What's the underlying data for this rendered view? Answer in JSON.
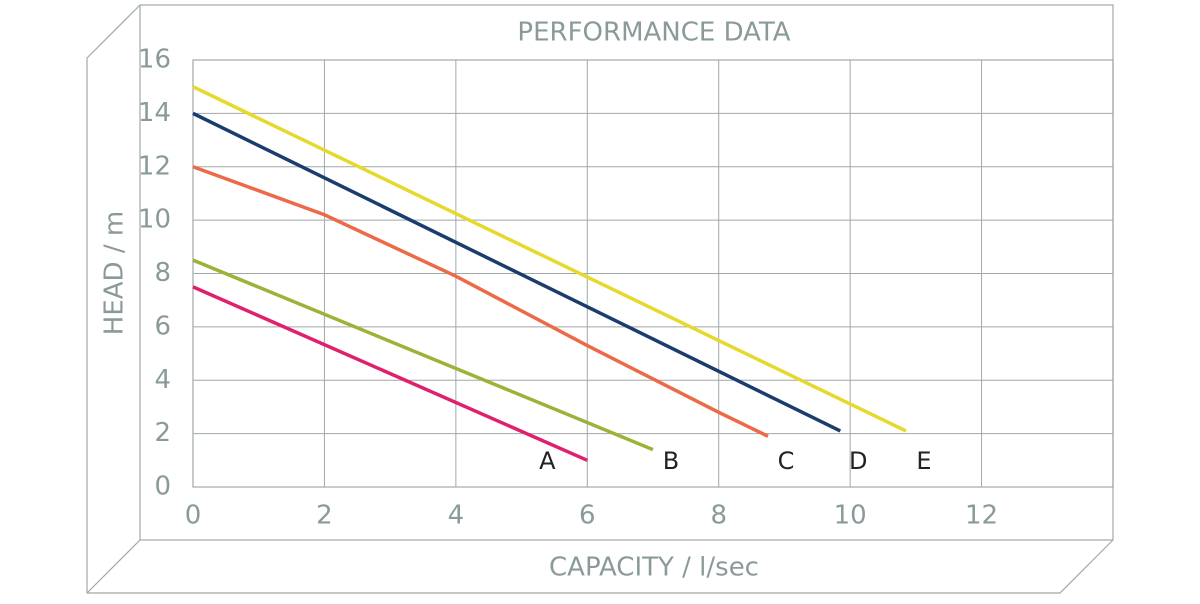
{
  "chart_data": {
    "type": "line",
    "title": "PERFORMANCE DATA",
    "x_label": "CAPACITY / l/sec",
    "y_label": "HEAD / m",
    "xlim": [
      0,
      14
    ],
    "xticks": [
      0,
      2,
      4,
      6,
      8,
      10,
      12
    ],
    "ylim": [
      0,
      16
    ],
    "yticks": [
      0,
      2,
      4,
      6,
      8,
      10,
      12,
      14,
      16
    ],
    "grid": true,
    "series": [
      {
        "name": "A",
        "color": "#e0206e",
        "x": [
          0,
          6
        ],
        "values": [
          7.5,
          1.0
        ]
      },
      {
        "name": "B",
        "color": "#9bb33a",
        "x": [
          0,
          7
        ],
        "values": [
          8.5,
          1.4
        ]
      },
      {
        "name": "C",
        "color": "#ec6a47",
        "x": [
          0,
          2,
          4,
          6,
          8,
          8.75
        ],
        "values": [
          12,
          10.2,
          7.9,
          5.3,
          2.8,
          1.9
        ]
      },
      {
        "name": "D",
        "color": "#1a3d6e",
        "x": [
          0,
          9.85
        ],
        "values": [
          14,
          2.1
        ]
      },
      {
        "name": "E",
        "color": "#e6d92c",
        "x": [
          0,
          10.85
        ],
        "values": [
          15,
          2.1
        ]
      }
    ]
  }
}
